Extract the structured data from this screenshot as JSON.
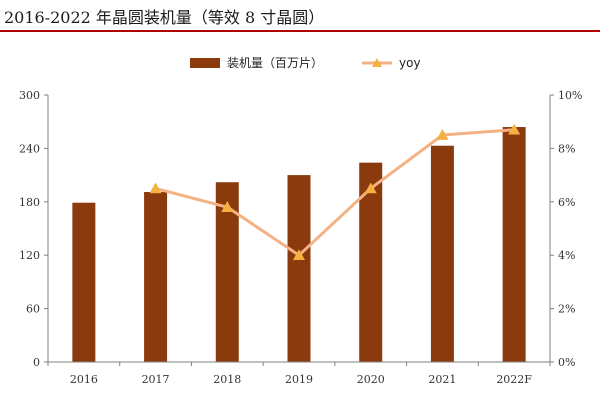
{
  "title": "2016-2022 年晶圆装机量（等效 8 寸晶圆）",
  "chart_data": {
    "type": "bar",
    "categories": [
      "2016",
      "2017",
      "2018",
      "2019",
      "2020",
      "2021",
      "2022F"
    ],
    "series": [
      {
        "name": "装机量（百万片）",
        "type": "bar",
        "axis": "left",
        "values": [
          179,
          191,
          202,
          210,
          224,
          243,
          264
        ]
      },
      {
        "name": "yoy",
        "type": "line",
        "axis": "right",
        "values": [
          null,
          6.5,
          5.8,
          4.0,
          6.5,
          8.5,
          8.7
        ]
      }
    ],
    "ylim": [
      0,
      300
    ],
    "yticks": [
      "0",
      "60",
      "120",
      "180",
      "240",
      "300"
    ],
    "y2lim": [
      0,
      10
    ],
    "y2ticks": [
      "0%",
      "2%",
      "4%",
      "6%",
      "8%",
      "10%"
    ],
    "legend_position": "top-center",
    "grid": false,
    "colors": {
      "bar": "#8B3A0E",
      "line": "#F4B183",
      "marker": "#F5B041",
      "axis": "#808080"
    }
  }
}
